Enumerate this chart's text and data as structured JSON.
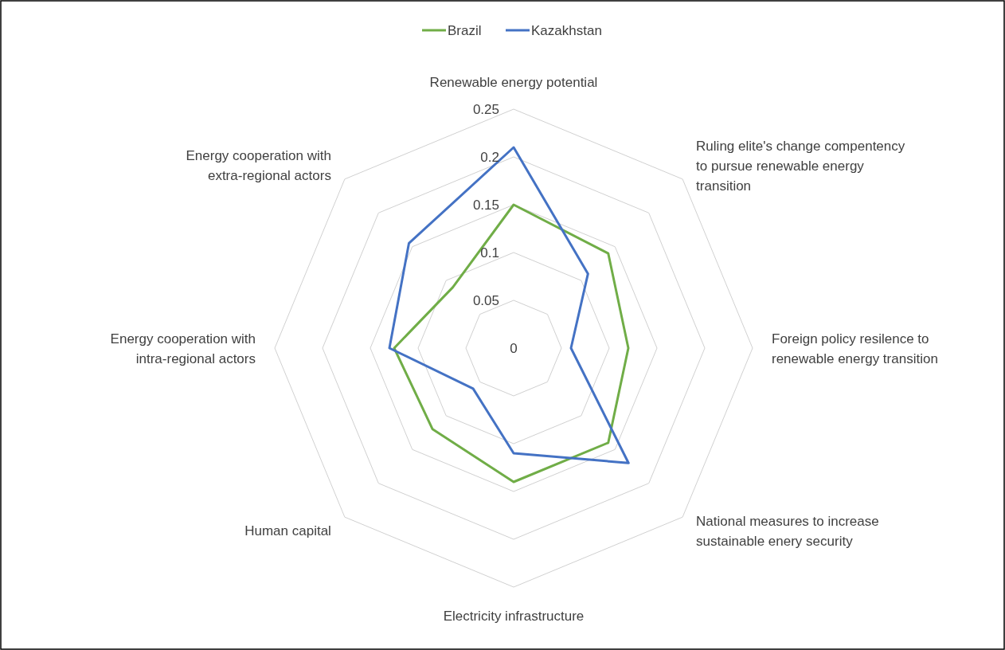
{
  "chart_data": {
    "type": "radar",
    "categories": [
      "Renewable energy potential",
      "Ruling elite's change compentency to pursue renewable energy transition",
      "Foreign policy resilence to renewable energy transition",
      "National measures to increase sustainable enery security",
      "Electricity infrastructure",
      "Human capital",
      "Energy cooperation with intra-regional actors",
      "Energy cooperation with extra-regional actors"
    ],
    "series": [
      {
        "name": "Brazil",
        "color": "#70ad47",
        "values": [
          0.15,
          0.14,
          0.12,
          0.14,
          0.14,
          0.12,
          0.125,
          0.09
        ]
      },
      {
        "name": "Kazakhstan",
        "color": "#4472c4",
        "values": [
          0.21,
          0.11,
          0.06,
          0.17,
          0.11,
          0.06,
          0.13,
          0.155
        ]
      }
    ],
    "ylim": [
      0,
      0.25
    ],
    "yticks": [
      0,
      0.05,
      0.1,
      0.15,
      0.2,
      0.25
    ],
    "grid": true,
    "legend": "top",
    "marker": "none",
    "line_style": "solid"
  }
}
